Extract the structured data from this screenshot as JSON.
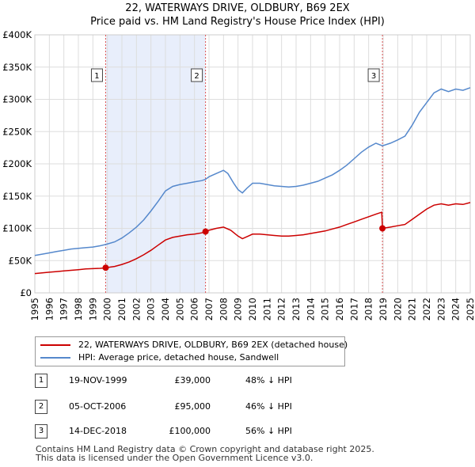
{
  "header": {
    "title": "22, WATERWAYS DRIVE, OLDBURY, B69 2EX",
    "subtitle": "Price paid vs. HM Land Registry's House Price Index (HPI)"
  },
  "legend": {
    "items": [
      {
        "label": "22, WATERWAYS DRIVE, OLDBURY, B69 2EX (detached house)",
        "color": "#cc0000"
      },
      {
        "label": "HPI: Average price, detached house, Sandwell",
        "color": "#5588cc"
      }
    ]
  },
  "transactions": [
    {
      "num": "1",
      "date": "19-NOV-1999",
      "price": "£39,000",
      "hpi": "48% ↓ HPI"
    },
    {
      "num": "2",
      "date": "05-OCT-2006",
      "price": "£95,000",
      "hpi": "46% ↓ HPI"
    },
    {
      "num": "3",
      "date": "14-DEC-2018",
      "price": "£100,000",
      "hpi": "56% ↓ HPI"
    }
  ],
  "footer": {
    "line1": "Contains HM Land Registry data © Crown copyright and database right 2025.",
    "line2": "This data is licensed under the Open Government Licence v3.0."
  },
  "chart_data": {
    "type": "line",
    "title": "22, WATERWAYS DRIVE, OLDBURY, B69 2EX",
    "subtitle": "Price paid vs. HM Land Registry's House Price Index (HPI)",
    "xlabel": "",
    "ylabel": "",
    "xlim": [
      1995,
      2025
    ],
    "ylim": [
      0,
      400000
    ],
    "x_ticks": [
      "1995",
      "1996",
      "1997",
      "1998",
      "1999",
      "2000",
      "2001",
      "2002",
      "2003",
      "2004",
      "2005",
      "2006",
      "2007",
      "2008",
      "2009",
      "2010",
      "2011",
      "2012",
      "2013",
      "2014",
      "2015",
      "2016",
      "2017",
      "2018",
      "2019",
      "2020",
      "2021",
      "2022",
      "2023",
      "2024",
      "2025"
    ],
    "y_ticks": [
      {
        "value": 0,
        "label": "£0"
      },
      {
        "value": 50000,
        "label": "£50K"
      },
      {
        "value": 100000,
        "label": "£100K"
      },
      {
        "value": 150000,
        "label": "£150K"
      },
      {
        "value": 200000,
        "label": "£200K"
      },
      {
        "value": 250000,
        "label": "£250K"
      },
      {
        "value": 300000,
        "label": "£300K"
      },
      {
        "value": 350000,
        "label": "£350K"
      },
      {
        "value": 400000,
        "label": "£400K"
      }
    ],
    "grid": true,
    "series": [
      {
        "name": "HPI: Average price, detached house, Sandwell",
        "color": "#5588cc",
        "points": [
          [
            1995.0,
            58000
          ],
          [
            1995.5,
            60000
          ],
          [
            1996.0,
            62000
          ],
          [
            1996.5,
            64000
          ],
          [
            1997.0,
            66000
          ],
          [
            1997.5,
            68000
          ],
          [
            1998.0,
            69000
          ],
          [
            1998.5,
            70000
          ],
          [
            1999.0,
            71000
          ],
          [
            1999.5,
            73000
          ],
          [
            1999.88,
            75000
          ],
          [
            2000.5,
            79000
          ],
          [
            2001.0,
            85000
          ],
          [
            2001.5,
            93000
          ],
          [
            2002.0,
            102000
          ],
          [
            2002.5,
            113000
          ],
          [
            2003.0,
            127000
          ],
          [
            2003.5,
            142000
          ],
          [
            2004.0,
            158000
          ],
          [
            2004.5,
            165000
          ],
          [
            2005.0,
            168000
          ],
          [
            2005.5,
            170000
          ],
          [
            2006.0,
            172000
          ],
          [
            2006.5,
            174000
          ],
          [
            2006.76,
            176000
          ],
          [
            2007.0,
            180000
          ],
          [
            2007.5,
            185000
          ],
          [
            2008.0,
            190000
          ],
          [
            2008.3,
            185000
          ],
          [
            2008.7,
            170000
          ],
          [
            2009.0,
            160000
          ],
          [
            2009.3,
            155000
          ],
          [
            2009.6,
            162000
          ],
          [
            2010.0,
            170000
          ],
          [
            2010.5,
            170000
          ],
          [
            2011.0,
            168000
          ],
          [
            2011.5,
            166000
          ],
          [
            2012.0,
            165000
          ],
          [
            2012.5,
            164000
          ],
          [
            2013.0,
            165000
          ],
          [
            2013.5,
            167000
          ],
          [
            2014.0,
            170000
          ],
          [
            2014.5,
            173000
          ],
          [
            2015.0,
            178000
          ],
          [
            2015.5,
            183000
          ],
          [
            2016.0,
            190000
          ],
          [
            2016.5,
            198000
          ],
          [
            2017.0,
            208000
          ],
          [
            2017.5,
            218000
          ],
          [
            2018.0,
            226000
          ],
          [
            2018.5,
            232000
          ],
          [
            2018.95,
            228000
          ],
          [
            2019.5,
            232000
          ],
          [
            2020.0,
            237000
          ],
          [
            2020.5,
            243000
          ],
          [
            2021.0,
            260000
          ],
          [
            2021.5,
            280000
          ],
          [
            2022.0,
            295000
          ],
          [
            2022.5,
            310000
          ],
          [
            2023.0,
            316000
          ],
          [
            2023.5,
            312000
          ],
          [
            2024.0,
            316000
          ],
          [
            2024.5,
            314000
          ],
          [
            2025.0,
            318000
          ]
        ]
      },
      {
        "name": "22, WATERWAYS DRIVE, OLDBURY, B69 2EX (detached house)",
        "color": "#cc0000",
        "points": [
          [
            1995.0,
            30000
          ],
          [
            1995.5,
            31000
          ],
          [
            1996.0,
            32000
          ],
          [
            1996.5,
            33000
          ],
          [
            1997.0,
            34000
          ],
          [
            1997.5,
            35000
          ],
          [
            1998.0,
            36000
          ],
          [
            1998.5,
            37000
          ],
          [
            1999.0,
            37500
          ],
          [
            1999.5,
            38000
          ],
          [
            1999.88,
            39000
          ],
          [
            2000.5,
            41000
          ],
          [
            2001.0,
            44000
          ],
          [
            2001.5,
            48000
          ],
          [
            2002.0,
            53000
          ],
          [
            2002.5,
            59000
          ],
          [
            2003.0,
            66000
          ],
          [
            2003.5,
            74000
          ],
          [
            2004.0,
            82000
          ],
          [
            2004.5,
            86000
          ],
          [
            2005.0,
            88000
          ],
          [
            2005.5,
            90000
          ],
          [
            2006.0,
            91000
          ],
          [
            2006.5,
            93000
          ],
          [
            2006.76,
            95000
          ],
          [
            2007.0,
            97000
          ],
          [
            2007.5,
            100000
          ],
          [
            2008.0,
            102000
          ],
          [
            2008.5,
            97000
          ],
          [
            2009.0,
            88000
          ],
          [
            2009.3,
            84000
          ],
          [
            2009.7,
            88000
          ],
          [
            2010.0,
            91000
          ],
          [
            2010.5,
            91000
          ],
          [
            2011.0,
            90000
          ],
          [
            2011.5,
            89000
          ],
          [
            2012.0,
            88000
          ],
          [
            2012.5,
            88000
          ],
          [
            2013.0,
            89000
          ],
          [
            2013.5,
            90000
          ],
          [
            2014.0,
            92000
          ],
          [
            2014.5,
            94000
          ],
          [
            2015.0,
            96000
          ],
          [
            2015.5,
            99000
          ],
          [
            2016.0,
            102000
          ],
          [
            2016.5,
            106000
          ],
          [
            2017.0,
            110000
          ],
          [
            2017.5,
            114000
          ],
          [
            2018.0,
            118000
          ],
          [
            2018.5,
            122000
          ],
          [
            2018.9,
            125000
          ],
          [
            2018.95,
            100000
          ],
          [
            2019.5,
            102000
          ],
          [
            2020.0,
            104000
          ],
          [
            2020.5,
            106000
          ],
          [
            2021.0,
            114000
          ],
          [
            2021.5,
            122000
          ],
          [
            2022.0,
            130000
          ],
          [
            2022.5,
            136000
          ],
          [
            2023.0,
            138000
          ],
          [
            2023.5,
            136000
          ],
          [
            2024.0,
            138000
          ],
          [
            2024.5,
            137000
          ],
          [
            2025.0,
            140000
          ]
        ]
      }
    ],
    "sales": [
      {
        "label": "1",
        "x": 1999.88,
        "price": 39000
      },
      {
        "label": "2",
        "x": 2006.76,
        "price": 95000
      },
      {
        "label": "3",
        "x": 2018.95,
        "price": 100000
      }
    ],
    "shaded_ranges": [
      [
        1999.88,
        2006.76
      ]
    ],
    "legend_position": "bottom-left"
  }
}
